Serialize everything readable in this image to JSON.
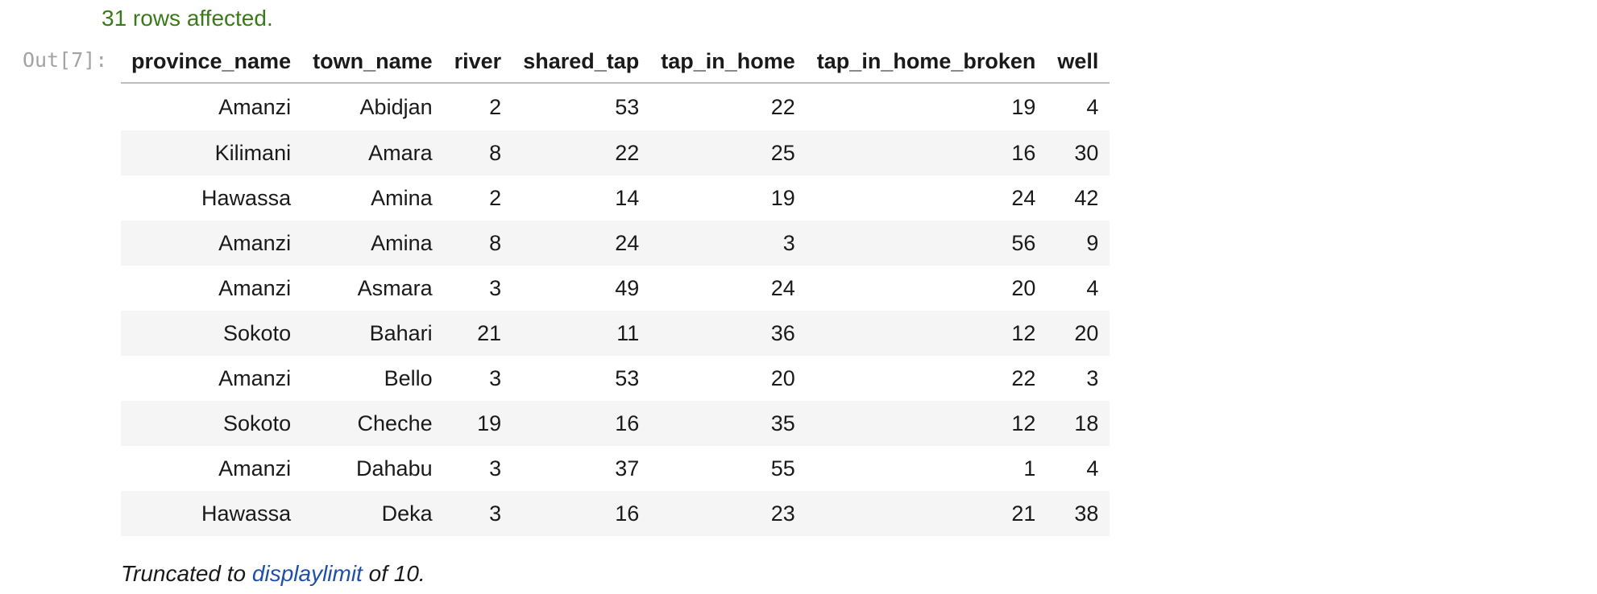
{
  "status": {
    "rows_affected": "31 rows affected."
  },
  "output": {
    "prompt": "Out[7]:"
  },
  "table": {
    "columns": [
      "province_name",
      "town_name",
      "river",
      "shared_tap",
      "tap_in_home",
      "tap_in_home_broken",
      "well"
    ],
    "rows": [
      [
        "Amanzi",
        "Abidjan",
        "2",
        "53",
        "22",
        "19",
        "4"
      ],
      [
        "Kilimani",
        "Amara",
        "8",
        "22",
        "25",
        "16",
        "30"
      ],
      [
        "Hawassa",
        "Amina",
        "2",
        "14",
        "19",
        "24",
        "42"
      ],
      [
        "Amanzi",
        "Amina",
        "8",
        "24",
        "3",
        "56",
        "9"
      ],
      [
        "Amanzi",
        "Asmara",
        "3",
        "49",
        "24",
        "20",
        "4"
      ],
      [
        "Sokoto",
        "Bahari",
        "21",
        "11",
        "36",
        "12",
        "20"
      ],
      [
        "Amanzi",
        "Bello",
        "3",
        "53",
        "20",
        "22",
        "3"
      ],
      [
        "Sokoto",
        "Cheche",
        "19",
        "16",
        "35",
        "12",
        "18"
      ],
      [
        "Amanzi",
        "Dahabu",
        "3",
        "37",
        "55",
        "1",
        "4"
      ],
      [
        "Hawassa",
        "Deka",
        "3",
        "16",
        "23",
        "21",
        "38"
      ]
    ]
  },
  "footer": {
    "prefix": "Truncated to ",
    "link_text": "displaylimit",
    "suffix": " of 10."
  },
  "colors": {
    "status_green": "#3a7a1a",
    "link_blue": "#1f4fa8",
    "prompt_gray": "#a3a3a3",
    "stripe": "#f5f5f5"
  }
}
